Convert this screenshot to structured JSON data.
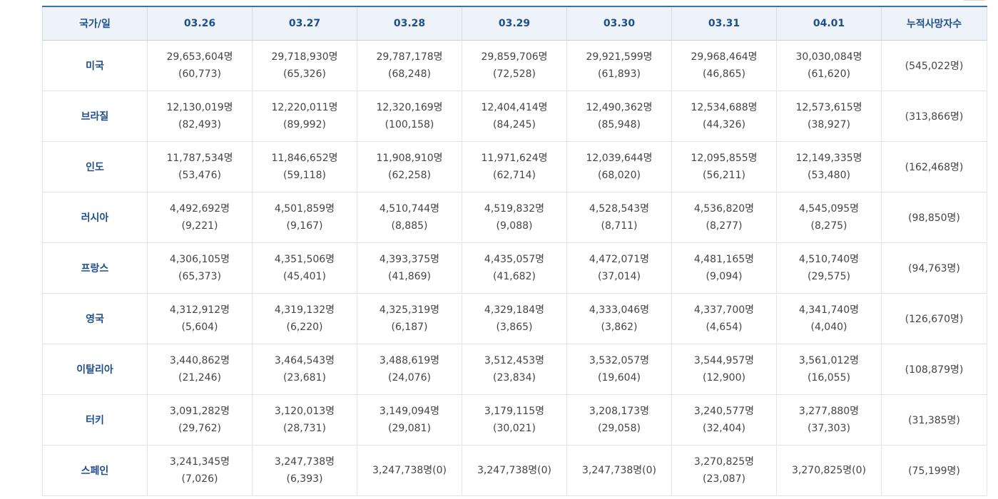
{
  "table": {
    "headers": {
      "country": "국가/일",
      "dates": [
        "03.26",
        "03.27",
        "03.28",
        "03.29",
        "03.30",
        "03.31",
        "04.01"
      ],
      "total": "누적사망자수"
    },
    "rows": [
      {
        "country": "미국",
        "cells": [
          {
            "value": "29,653,604명",
            "delta": "(60,773)"
          },
          {
            "value": "29,718,930명",
            "delta": "(65,326)"
          },
          {
            "value": "29,787,178명",
            "delta": "(68,248)"
          },
          {
            "value": "29,859,706명",
            "delta": "(72,528)"
          },
          {
            "value": "29,921,599명",
            "delta": "(61,893)"
          },
          {
            "value": "29,968,464명",
            "delta": "(46,865)"
          },
          {
            "value": "30,030,084명",
            "delta": "(61,620)"
          }
        ],
        "deaths": "(545,022명)"
      },
      {
        "country": "브라질",
        "cells": [
          {
            "value": "12,130,019명",
            "delta": "(82,493)"
          },
          {
            "value": "12,220,011명",
            "delta": "(89,992)"
          },
          {
            "value": "12,320,169명",
            "delta": "(100,158)"
          },
          {
            "value": "12,404,414명",
            "delta": "(84,245)"
          },
          {
            "value": "12,490,362명",
            "delta": "(85,948)"
          },
          {
            "value": "12,534,688명",
            "delta": "(44,326)"
          },
          {
            "value": "12,573,615명",
            "delta": "(38,927)"
          }
        ],
        "deaths": "(313,866명)"
      },
      {
        "country": "인도",
        "cells": [
          {
            "value": "11,787,534명",
            "delta": "(53,476)"
          },
          {
            "value": "11,846,652명",
            "delta": "(59,118)"
          },
          {
            "value": "11,908,910명",
            "delta": "(62,258)"
          },
          {
            "value": "11,971,624명",
            "delta": "(62,714)"
          },
          {
            "value": "12,039,644명",
            "delta": "(68,020)"
          },
          {
            "value": "12,095,855명",
            "delta": "(56,211)"
          },
          {
            "value": "12,149,335명",
            "delta": "(53,480)"
          }
        ],
        "deaths": "(162,468명)"
      },
      {
        "country": "러시아",
        "cells": [
          {
            "value": "4,492,692명",
            "delta": "(9,221)"
          },
          {
            "value": "4,501,859명",
            "delta": "(9,167)"
          },
          {
            "value": "4,510,744명",
            "delta": "(8,885)"
          },
          {
            "value": "4,519,832명",
            "delta": "(9,088)"
          },
          {
            "value": "4,528,543명",
            "delta": "(8,711)"
          },
          {
            "value": "4,536,820명",
            "delta": "(8,277)"
          },
          {
            "value": "4,545,095명",
            "delta": "(8,275)"
          }
        ],
        "deaths": "(98,850명)"
      },
      {
        "country": "프랑스",
        "cells": [
          {
            "value": "4,306,105명",
            "delta": "(65,373)"
          },
          {
            "value": "4,351,506명",
            "delta": "(45,401)"
          },
          {
            "value": "4,393,375명",
            "delta": "(41,869)"
          },
          {
            "value": "4,435,057명",
            "delta": "(41,682)"
          },
          {
            "value": "4,472,071명",
            "delta": "(37,014)"
          },
          {
            "value": "4,481,165명",
            "delta": "(9,094)"
          },
          {
            "value": "4,510,740명",
            "delta": "(29,575)"
          }
        ],
        "deaths": "(94,763명)"
      },
      {
        "country": "영국",
        "cells": [
          {
            "value": "4,312,912명",
            "delta": "(5,604)"
          },
          {
            "value": "4,319,132명",
            "delta": "(6,220)"
          },
          {
            "value": "4,325,319명",
            "delta": "(6,187)"
          },
          {
            "value": "4,329,184명",
            "delta": "(3,865)"
          },
          {
            "value": "4,333,046명",
            "delta": "(3,862)"
          },
          {
            "value": "4,337,700명",
            "delta": "(4,654)"
          },
          {
            "value": "4,341,740명",
            "delta": "(4,040)"
          }
        ],
        "deaths": "(126,670명)"
      },
      {
        "country": "이탈리아",
        "cells": [
          {
            "value": "3,440,862명",
            "delta": "(21,246)"
          },
          {
            "value": "3,464,543명",
            "delta": "(23,681)"
          },
          {
            "value": "3,488,619명",
            "delta": "(24,076)"
          },
          {
            "value": "3,512,453명",
            "delta": "(23,834)"
          },
          {
            "value": "3,532,057명",
            "delta": "(19,604)"
          },
          {
            "value": "3,544,957명",
            "delta": "(12,900)"
          },
          {
            "value": "3,561,012명",
            "delta": "(16,055)"
          }
        ],
        "deaths": "(108,879명)"
      },
      {
        "country": "터키",
        "cells": [
          {
            "value": "3,091,282명",
            "delta": "(29,762)"
          },
          {
            "value": "3,120,013명",
            "delta": "(28,731)"
          },
          {
            "value": "3,149,094명",
            "delta": "(29,081)"
          },
          {
            "value": "3,179,115명",
            "delta": "(30,021)"
          },
          {
            "value": "3,208,173명",
            "delta": "(29,058)"
          },
          {
            "value": "3,240,577명",
            "delta": "(32,404)"
          },
          {
            "value": "3,277,880명",
            "delta": "(37,303)"
          }
        ],
        "deaths": "(31,385명)"
      },
      {
        "country": "스페인",
        "cells": [
          {
            "value": "3,241,345명",
            "delta": "(7,026)"
          },
          {
            "value": "3,247,738명",
            "delta": "(6,393)"
          },
          {
            "inline": "3,247,738명(0)"
          },
          {
            "inline": "3,247,738명(0)"
          },
          {
            "inline": "3,247,738명(0)"
          },
          {
            "value": "3,270,825명",
            "delta": "(23,087)"
          },
          {
            "inline": "3,270,825명(0)"
          }
        ],
        "deaths": "(75,199명)"
      }
    ]
  }
}
